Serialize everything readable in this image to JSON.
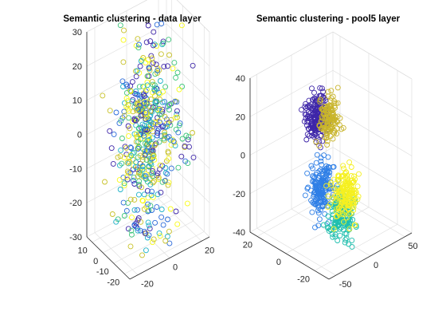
{
  "chart_data": [
    {
      "type": "scatter",
      "projection": "3d",
      "title": "Semantic clustering - data layer",
      "xlabel": "",
      "ylabel": "",
      "zlabel": "",
      "grid": true,
      "x_ticks": [
        "-20",
        "0",
        "20"
      ],
      "y_ticks": [
        "-20",
        "-10",
        "0",
        "10"
      ],
      "z_ticks": [
        "-30",
        "-20",
        "-10",
        "0",
        "10",
        "20",
        "30"
      ],
      "xlim": [
        -25,
        25
      ],
      "ylim": [
        -25,
        15
      ],
      "zlim": [
        -30,
        30
      ],
      "marker": "circle-open",
      "class_colors": [
        "#3e26a8",
        "#2a6ad9",
        "#1fb2c8",
        "#3ec57a",
        "#c8c22a",
        "#f9fb15"
      ],
      "clusters": [
        {
          "center": [
            0,
            -5,
            0
          ],
          "spread": [
            9,
            7,
            14
          ],
          "count": 520,
          "class_mix": "all"
        }
      ]
    },
    {
      "type": "scatter",
      "projection": "3d",
      "title": "Semantic clustering - pool5 layer",
      "xlabel": "",
      "ylabel": "",
      "zlabel": "",
      "grid": true,
      "x_ticks": [
        "-50",
        "0",
        "50"
      ],
      "y_ticks": [
        "-20",
        "0",
        "20"
      ],
      "z_ticks": [
        "-40",
        "-20",
        "0",
        "20",
        "40"
      ],
      "xlim": [
        -60,
        60
      ],
      "ylim": [
        -30,
        25
      ],
      "zlim": [
        -40,
        40
      ],
      "marker": "circle-open",
      "clusters": [
        {
          "color": "#3e26a8",
          "center": [
            -5,
            5,
            18
          ],
          "spread": [
            6,
            3,
            6
          ],
          "count": 180
        },
        {
          "color": "#c8b42a",
          "center": [
            12,
            4,
            14
          ],
          "spread": [
            5,
            3,
            6
          ],
          "count": 130
        },
        {
          "color": "#2f7fe6",
          "center": [
            -30,
            -10,
            -8
          ],
          "spread": [
            6,
            3,
            7
          ],
          "count": 180
        },
        {
          "color": "#1fbfae",
          "center": [
            -5,
            -12,
            -26
          ],
          "spread": [
            6,
            3,
            5
          ],
          "count": 150
        },
        {
          "color": "#f5f020",
          "center": [
            15,
            -5,
            -22
          ],
          "spread": [
            6,
            3,
            7
          ],
          "count": 170
        }
      ]
    }
  ]
}
